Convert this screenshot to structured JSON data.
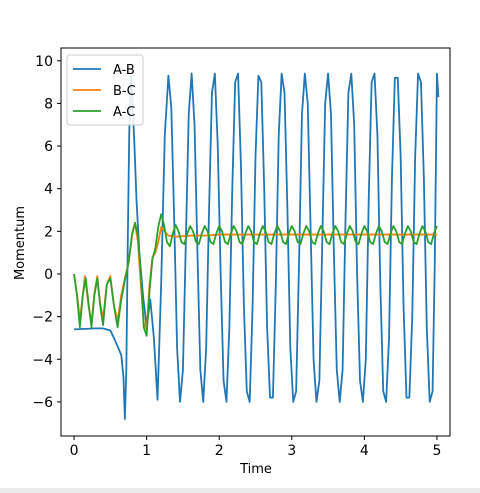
{
  "chart_data": {
    "type": "line",
    "xlabel": "Time",
    "ylabel": "Momentum",
    "xlim": [
      -0.18,
      5.18
    ],
    "ylim": [
      -7.6,
      10.6
    ],
    "x_ticks": [
      0,
      1,
      2,
      3,
      4,
      5
    ],
    "x_tick_labels": [
      "0",
      "1",
      "2",
      "3",
      "4",
      "5"
    ],
    "y_ticks": [
      -6,
      -4,
      -2,
      0,
      2,
      4,
      6,
      8,
      10
    ],
    "y_tick_labels": [
      "−6",
      "−4",
      "−2",
      "0",
      "2",
      "4",
      "6",
      "8",
      "10"
    ],
    "grid": false,
    "legend_position": "top-left",
    "series": [
      {
        "name": "A-B",
        "color": "#1f77b4",
        "points": [
          [
            0.0,
            -2.6
          ],
          [
            0.1,
            -2.58
          ],
          [
            0.2,
            -2.57
          ],
          [
            0.3,
            -2.55
          ],
          [
            0.4,
            -2.55
          ],
          [
            0.5,
            -2.65
          ],
          [
            0.55,
            -3.0
          ],
          [
            0.6,
            -3.4
          ],
          [
            0.65,
            -3.8
          ],
          [
            0.68,
            -4.8
          ],
          [
            0.7,
            -6.8
          ],
          [
            0.72,
            -4.5
          ],
          [
            0.74,
            1.5
          ],
          [
            0.76,
            6.5
          ],
          [
            0.78,
            9.3
          ],
          [
            0.8,
            8.5
          ],
          [
            0.83,
            6.2
          ],
          [
            0.86,
            3.5
          ],
          [
            0.9,
            1.0
          ],
          [
            0.95,
            -1.0
          ],
          [
            1.0,
            -2.5
          ],
          [
            1.05,
            -1.2
          ],
          [
            1.1,
            -3.0
          ],
          [
            1.15,
            -5.9
          ],
          [
            1.2,
            -0.5
          ],
          [
            1.25,
            6.5
          ],
          [
            1.3,
            9.3
          ],
          [
            1.34,
            7.8
          ],
          [
            1.38,
            2.5
          ],
          [
            1.42,
            -3.5
          ],
          [
            1.46,
            -6.0
          ],
          [
            1.5,
            -4.5
          ],
          [
            1.54,
            1.5
          ],
          [
            1.58,
            7.5
          ],
          [
            1.62,
            9.4
          ],
          [
            1.66,
            7.0
          ],
          [
            1.7,
            1.0
          ],
          [
            1.74,
            -4.5
          ],
          [
            1.78,
            -6.0
          ],
          [
            1.82,
            -3.5
          ],
          [
            1.86,
            3.0
          ],
          [
            1.9,
            8.5
          ],
          [
            1.94,
            9.4
          ],
          [
            1.98,
            6.0
          ],
          [
            2.02,
            0.0
          ],
          [
            2.06,
            -5.0
          ],
          [
            2.1,
            -6.0
          ],
          [
            2.14,
            -2.5
          ],
          [
            2.18,
            4.0
          ],
          [
            2.22,
            9.0
          ],
          [
            2.26,
            9.4
          ],
          [
            2.3,
            5.0
          ],
          [
            2.34,
            -1.5
          ],
          [
            2.38,
            -5.5
          ],
          [
            2.42,
            -6.0
          ],
          [
            2.46,
            -1.5
          ],
          [
            2.5,
            5.5
          ],
          [
            2.54,
            9.3
          ],
          [
            2.58,
            9.0
          ],
          [
            2.62,
            4.0
          ],
          [
            2.66,
            -2.5
          ],
          [
            2.7,
            -5.8
          ],
          [
            2.74,
            -5.8
          ],
          [
            2.78,
            -0.5
          ],
          [
            2.82,
            6.5
          ],
          [
            2.86,
            9.4
          ],
          [
            2.9,
            8.5
          ],
          [
            2.94,
            3.0
          ],
          [
            2.98,
            -3.5
          ],
          [
            3.02,
            -6.0
          ],
          [
            3.06,
            -5.5
          ],
          [
            3.1,
            0.5
          ],
          [
            3.14,
            7.5
          ],
          [
            3.18,
            9.4
          ],
          [
            3.22,
            8.0
          ],
          [
            3.26,
            2.0
          ],
          [
            3.3,
            -4.0
          ],
          [
            3.34,
            -6.0
          ],
          [
            3.38,
            -5.0
          ],
          [
            3.42,
            1.5
          ],
          [
            3.46,
            8.0
          ],
          [
            3.5,
            9.4
          ],
          [
            3.54,
            7.5
          ],
          [
            3.58,
            1.0
          ],
          [
            3.62,
            -4.5
          ],
          [
            3.66,
            -6.0
          ],
          [
            3.7,
            -4.5
          ],
          [
            3.74,
            2.5
          ],
          [
            3.78,
            8.5
          ],
          [
            3.82,
            9.4
          ],
          [
            3.86,
            7.0
          ],
          [
            3.9,
            0.0
          ],
          [
            3.94,
            -5.0
          ],
          [
            3.98,
            -6.0
          ],
          [
            4.02,
            -4.0
          ],
          [
            4.06,
            3.5
          ],
          [
            4.1,
            9.0
          ],
          [
            4.14,
            9.4
          ],
          [
            4.18,
            6.5
          ],
          [
            4.22,
            -0.5
          ],
          [
            4.26,
            -5.5
          ],
          [
            4.3,
            -6.0
          ],
          [
            4.34,
            -3.0
          ],
          [
            4.38,
            4.5
          ],
          [
            4.42,
            9.2
          ],
          [
            4.46,
            9.2
          ],
          [
            4.5,
            5.5
          ],
          [
            4.54,
            -1.5
          ],
          [
            4.58,
            -5.8
          ],
          [
            4.62,
            -5.8
          ],
          [
            4.66,
            -2.0
          ],
          [
            4.7,
            5.5
          ],
          [
            4.74,
            9.4
          ],
          [
            4.78,
            9.0
          ],
          [
            4.82,
            4.5
          ],
          [
            4.86,
            -2.5
          ],
          [
            4.9,
            -6.0
          ],
          [
            4.94,
            -5.5
          ],
          [
            4.97,
            0.5
          ],
          [
            5.0,
            9.4
          ],
          [
            5.02,
            8.3
          ]
        ]
      },
      {
        "name": "B-C",
        "color": "#ff7f0e",
        "points": [
          [
            0.0,
            0.0
          ],
          [
            0.05,
            -1.2
          ],
          [
            0.08,
            -2.2
          ],
          [
            0.12,
            -1.0
          ],
          [
            0.15,
            -0.1
          ],
          [
            0.2,
            -1.5
          ],
          [
            0.24,
            -2.3
          ],
          [
            0.28,
            -0.9
          ],
          [
            0.32,
            -0.1
          ],
          [
            0.36,
            -1.4
          ],
          [
            0.4,
            -2.1
          ],
          [
            0.45,
            -0.5
          ],
          [
            0.5,
            -0.1
          ],
          [
            0.55,
            -1.5
          ],
          [
            0.6,
            -2.2
          ],
          [
            0.65,
            -1.0
          ],
          [
            0.7,
            -0.2
          ],
          [
            0.75,
            0.5
          ],
          [
            0.8,
            1.8
          ],
          [
            0.84,
            2.4
          ],
          [
            0.88,
            1.5
          ],
          [
            0.92,
            -0.5
          ],
          [
            0.96,
            -2.3
          ],
          [
            1.0,
            -2.6
          ],
          [
            1.04,
            -0.5
          ],
          [
            1.08,
            0.8
          ],
          [
            1.12,
            1.0
          ],
          [
            1.16,
            1.5
          ],
          [
            1.2,
            2.2
          ],
          [
            1.25,
            2.0
          ],
          [
            1.3,
            1.8
          ],
          [
            1.4,
            1.75
          ],
          [
            1.6,
            1.8
          ],
          [
            1.8,
            1.8
          ],
          [
            2.0,
            1.85
          ],
          [
            2.5,
            1.85
          ],
          [
            3.0,
            1.85
          ],
          [
            3.5,
            1.85
          ],
          [
            4.0,
            1.85
          ],
          [
            4.5,
            1.85
          ],
          [
            5.0,
            1.85
          ]
        ]
      },
      {
        "name": "A-C",
        "color": "#2ca02c",
        "points": [
          [
            0.0,
            0.0
          ],
          [
            0.04,
            -1.0
          ],
          [
            0.08,
            -2.5
          ],
          [
            0.12,
            -1.0
          ],
          [
            0.16,
            -0.2
          ],
          [
            0.2,
            -1.4
          ],
          [
            0.24,
            -2.5
          ],
          [
            0.28,
            -1.0
          ],
          [
            0.32,
            -0.2
          ],
          [
            0.36,
            -1.5
          ],
          [
            0.4,
            -2.4
          ],
          [
            0.45,
            -0.5
          ],
          [
            0.5,
            -0.2
          ],
          [
            0.55,
            -1.5
          ],
          [
            0.6,
            -2.5
          ],
          [
            0.65,
            -1.2
          ],
          [
            0.7,
            -0.3
          ],
          [
            0.75,
            0.5
          ],
          [
            0.8,
            1.9
          ],
          [
            0.84,
            2.4
          ],
          [
            0.88,
            1.8
          ],
          [
            0.92,
            0.0
          ],
          [
            0.96,
            -2.5
          ],
          [
            1.0,
            -2.9
          ],
          [
            1.04,
            -0.8
          ],
          [
            1.08,
            0.7
          ],
          [
            1.12,
            1.2
          ],
          [
            1.16,
            2.2
          ],
          [
            1.2,
            2.8
          ],
          [
            1.24,
            2.3
          ],
          [
            1.28,
            1.5
          ],
          [
            1.32,
            1.3
          ],
          [
            1.36,
            1.9
          ],
          [
            1.4,
            2.3
          ],
          [
            1.44,
            2.0
          ],
          [
            1.48,
            1.5
          ],
          [
            1.52,
            1.4
          ],
          [
            1.56,
            1.9
          ],
          [
            1.6,
            2.25
          ],
          [
            1.64,
            2.0
          ],
          [
            1.68,
            1.5
          ],
          [
            1.72,
            1.4
          ],
          [
            1.76,
            1.9
          ],
          [
            1.8,
            2.25
          ],
          [
            1.84,
            2.0
          ],
          [
            1.88,
            1.5
          ],
          [
            1.92,
            1.4
          ],
          [
            1.96,
            1.9
          ],
          [
            2.0,
            2.25
          ],
          [
            2.04,
            2.0
          ],
          [
            2.08,
            1.5
          ],
          [
            2.12,
            1.4
          ],
          [
            2.16,
            1.9
          ],
          [
            2.2,
            2.25
          ],
          [
            2.24,
            2.0
          ],
          [
            2.28,
            1.5
          ],
          [
            2.32,
            1.4
          ],
          [
            2.36,
            1.9
          ],
          [
            2.4,
            2.25
          ],
          [
            2.44,
            2.0
          ],
          [
            2.48,
            1.5
          ],
          [
            2.52,
            1.4
          ],
          [
            2.56,
            1.9
          ],
          [
            2.6,
            2.25
          ],
          [
            2.64,
            2.0
          ],
          [
            2.68,
            1.5
          ],
          [
            2.72,
            1.4
          ],
          [
            2.76,
            1.9
          ],
          [
            2.8,
            2.25
          ],
          [
            2.84,
            2.0
          ],
          [
            2.88,
            1.5
          ],
          [
            2.92,
            1.4
          ],
          [
            2.96,
            1.9
          ],
          [
            3.0,
            2.25
          ],
          [
            3.04,
            2.0
          ],
          [
            3.08,
            1.5
          ],
          [
            3.12,
            1.4
          ],
          [
            3.16,
            1.9
          ],
          [
            3.2,
            2.25
          ],
          [
            3.24,
            2.0
          ],
          [
            3.28,
            1.5
          ],
          [
            3.32,
            1.4
          ],
          [
            3.36,
            1.9
          ],
          [
            3.4,
            2.25
          ],
          [
            3.44,
            2.0
          ],
          [
            3.48,
            1.5
          ],
          [
            3.52,
            1.4
          ],
          [
            3.56,
            1.9
          ],
          [
            3.6,
            2.25
          ],
          [
            3.64,
            2.0
          ],
          [
            3.68,
            1.5
          ],
          [
            3.72,
            1.4
          ],
          [
            3.76,
            1.9
          ],
          [
            3.8,
            2.25
          ],
          [
            3.84,
            2.0
          ],
          [
            3.88,
            1.5
          ],
          [
            3.92,
            1.4
          ],
          [
            3.96,
            1.9
          ],
          [
            4.0,
            2.25
          ],
          [
            4.04,
            2.0
          ],
          [
            4.08,
            1.5
          ],
          [
            4.12,
            1.4
          ],
          [
            4.16,
            1.9
          ],
          [
            4.2,
            2.25
          ],
          [
            4.24,
            2.0
          ],
          [
            4.28,
            1.5
          ],
          [
            4.32,
            1.4
          ],
          [
            4.36,
            1.9
          ],
          [
            4.4,
            2.25
          ],
          [
            4.44,
            2.0
          ],
          [
            4.48,
            1.5
          ],
          [
            4.52,
            1.4
          ],
          [
            4.56,
            1.9
          ],
          [
            4.6,
            2.25
          ],
          [
            4.64,
            2.0
          ],
          [
            4.68,
            1.5
          ],
          [
            4.72,
            1.4
          ],
          [
            4.76,
            1.9
          ],
          [
            4.8,
            2.25
          ],
          [
            4.84,
            2.0
          ],
          [
            4.88,
            1.5
          ],
          [
            4.92,
            1.4
          ],
          [
            4.96,
            1.9
          ],
          [
            5.0,
            2.25
          ]
        ]
      }
    ]
  }
}
